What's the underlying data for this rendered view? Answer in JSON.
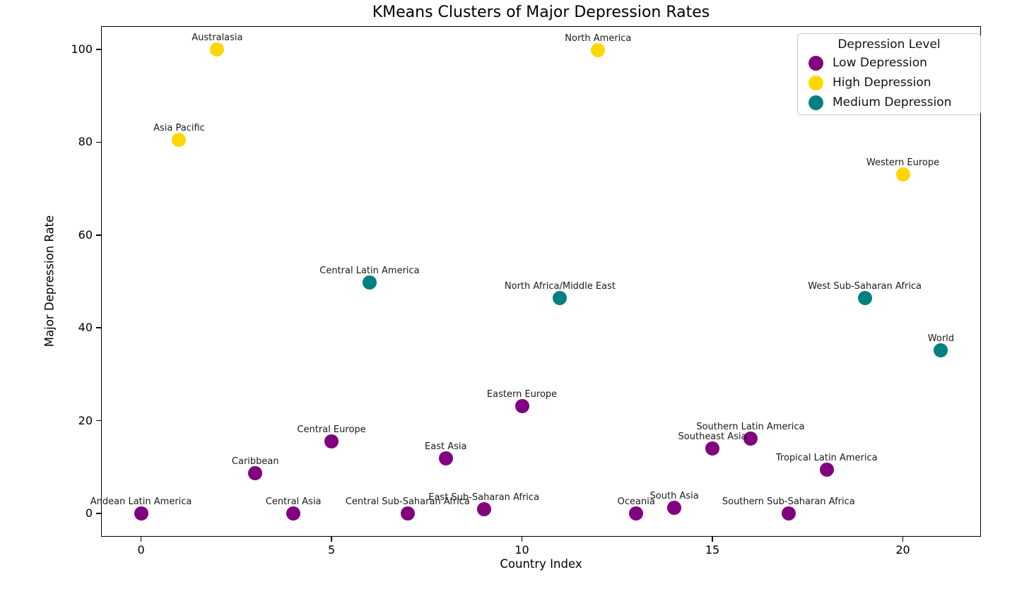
{
  "chart_data": {
    "type": "scatter",
    "title": "KMeans Clusters of Major Depression Rates",
    "xlabel": "Country Index",
    "ylabel": "Major Depression Rate",
    "xlim": [
      -1.05,
      22.05
    ],
    "ylim": [
      -5,
      105
    ],
    "xticks": [
      0,
      5,
      10,
      15,
      20
    ],
    "yticks": [
      0,
      20,
      40,
      60,
      80,
      100
    ],
    "grid": false,
    "legend_position": "upper right",
    "points": [
      {
        "label": "Andean Latin America",
        "x": 0,
        "y": 0,
        "cluster": "low"
      },
      {
        "label": "Asia Pacific",
        "x": 1,
        "y": 80.5,
        "cluster": "high"
      },
      {
        "label": "Australasia",
        "x": 2,
        "y": 100,
        "cluster": "high"
      },
      {
        "label": "Caribbean",
        "x": 3,
        "y": 8.7,
        "cluster": "low"
      },
      {
        "label": "Central Asia",
        "x": 4,
        "y": 0,
        "cluster": "low"
      },
      {
        "label": "Central Europe",
        "x": 5,
        "y": 15.6,
        "cluster": "low"
      },
      {
        "label": "Central Latin America",
        "x": 6,
        "y": 49.8,
        "cluster": "medium"
      },
      {
        "label": "Central Sub-Saharan Africa",
        "x": 7,
        "y": 0,
        "cluster": "low"
      },
      {
        "label": "East Asia",
        "x": 8,
        "y": 11.9,
        "cluster": "low"
      },
      {
        "label": "East Sub-Saharan Africa",
        "x": 9,
        "y": 1.0,
        "cluster": "low"
      },
      {
        "label": "Eastern Europe",
        "x": 10,
        "y": 23.2,
        "cluster": "low"
      },
      {
        "label": "North Africa/Middle East",
        "x": 11,
        "y": 46.5,
        "cluster": "medium"
      },
      {
        "label": "North America",
        "x": 12,
        "y": 99.8,
        "cluster": "high"
      },
      {
        "label": "Oceania",
        "x": 13,
        "y": 0,
        "cluster": "low"
      },
      {
        "label": "South Asia",
        "x": 14,
        "y": 1.3,
        "cluster": "low"
      },
      {
        "label": "Southeast Asia",
        "x": 15,
        "y": 14.0,
        "cluster": "low"
      },
      {
        "label": "Southern Latin America",
        "x": 16,
        "y": 16.1,
        "cluster": "low"
      },
      {
        "label": "Southern Sub-Saharan Africa",
        "x": 17,
        "y": 0,
        "cluster": "low"
      },
      {
        "label": "Tropical Latin America",
        "x": 18,
        "y": 9.4,
        "cluster": "low"
      },
      {
        "label": "West Sub-Saharan Africa",
        "x": 19,
        "y": 46.4,
        "cluster": "medium"
      },
      {
        "label": "Western Europe",
        "x": 20,
        "y": 73.1,
        "cluster": "high"
      },
      {
        "label": "World",
        "x": 21,
        "y": 35.2,
        "cluster": "medium"
      }
    ]
  },
  "legend": {
    "title": "Depression Level",
    "items": [
      {
        "key": "low",
        "label": "Low Depression",
        "color": "#800080"
      },
      {
        "key": "high",
        "label": "High Depression",
        "color": "#FFD700"
      },
      {
        "key": "medium",
        "label": "Medium Depression",
        "color": "#008080"
      }
    ]
  }
}
